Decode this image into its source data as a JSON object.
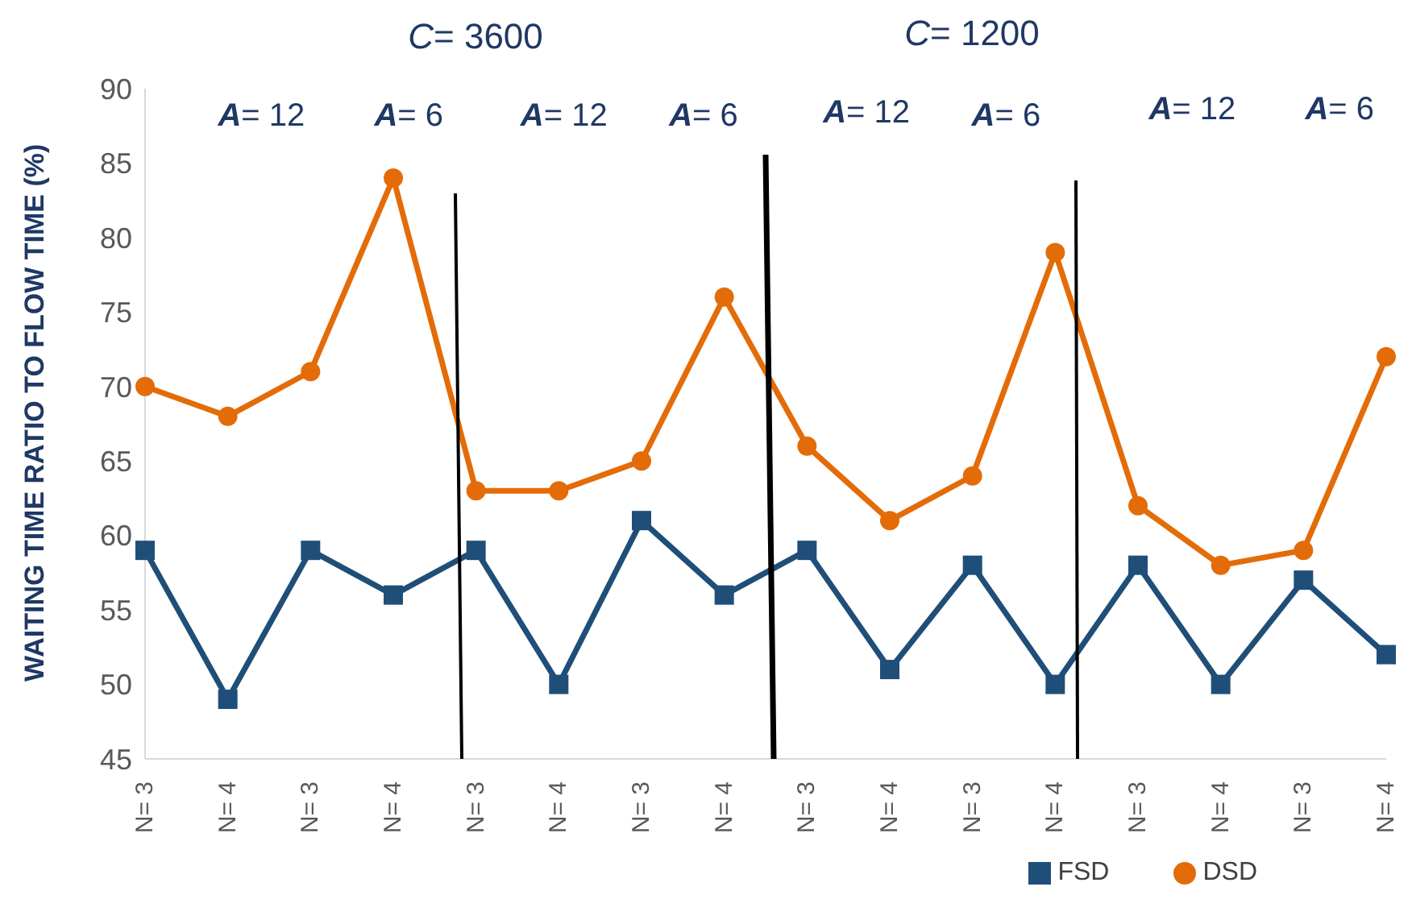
{
  "chart_data": {
    "type": "line",
    "ylabel": "WAITING TIME RATIO TO FLOW TIME (%)",
    "categories": [
      "N= 3",
      "N= 4",
      "N= 3",
      "N= 4",
      "N= 3",
      "N= 4",
      "N= 3",
      "N= 4",
      "N= 3",
      "N= 4",
      "N= 3",
      "N= 4",
      "N= 3",
      "N= 4",
      "N= 3",
      "N= 4"
    ],
    "series": [
      {
        "name": "FSD",
        "color": "#1f4e79",
        "marker": "square",
        "values": [
          59,
          49,
          59,
          56,
          59,
          50,
          61,
          56,
          59,
          51,
          58,
          50,
          58,
          50,
          57,
          52
        ]
      },
      {
        "name": "DSD",
        "color": "#e36c09",
        "marker": "circle",
        "values": [
          70,
          68,
          71,
          84,
          63,
          63,
          65,
          76,
          66,
          61,
          64,
          79,
          62,
          58,
          59,
          72
        ]
      }
    ],
    "ylim": [
      45,
      90
    ],
    "yticks": [
      45,
      50,
      55,
      60,
      65,
      70,
      75,
      80,
      85,
      90
    ],
    "grid": false,
    "legend": "bottom right",
    "annotations": [
      "C= 3600",
      "C= 1200",
      "A= 12",
      "A= 6",
      "A= 12",
      "A= 6",
      "A= 12",
      "A= 6",
      "A= 12",
      "A= 6"
    ]
  }
}
